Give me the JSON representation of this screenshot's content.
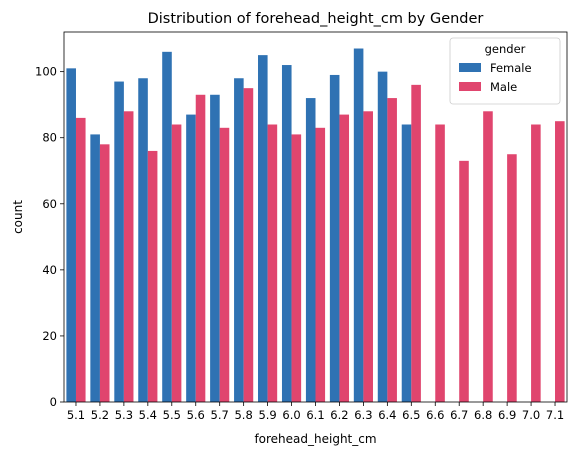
{
  "chart_data": {
    "type": "bar",
    "title": "Distribution of forehead_height_cm by Gender",
    "xlabel": "forehead_height_cm",
    "ylabel": "count",
    "ylim": [
      0,
      112
    ],
    "yticks": [
      0,
      20,
      40,
      60,
      80,
      100
    ],
    "categories": [
      "5.1",
      "5.2",
      "5.3",
      "5.4",
      "5.5",
      "5.6",
      "5.7",
      "5.8",
      "5.9",
      "6.0",
      "6.1",
      "6.2",
      "6.3",
      "6.4",
      "6.5",
      "6.6",
      "6.7",
      "6.8",
      "6.9",
      "7.0",
      "7.1"
    ],
    "legend": {
      "title": "gender",
      "placement": "top-right"
    },
    "series": [
      {
        "name": "Female",
        "color": "#2f72b3",
        "values": [
          101,
          81,
          97,
          98,
          106,
          87,
          93,
          98,
          105,
          102,
          92,
          99,
          107,
          100,
          84,
          null,
          null,
          null,
          null,
          null,
          null
        ]
      },
      {
        "name": "Male",
        "color": "#e0456e",
        "values": [
          86,
          78,
          88,
          76,
          84,
          93,
          83,
          95,
          84,
          81,
          83,
          87,
          88,
          92,
          96,
          84,
          73,
          88,
          75,
          84,
          85
        ]
      }
    ],
    "grid": false
  }
}
